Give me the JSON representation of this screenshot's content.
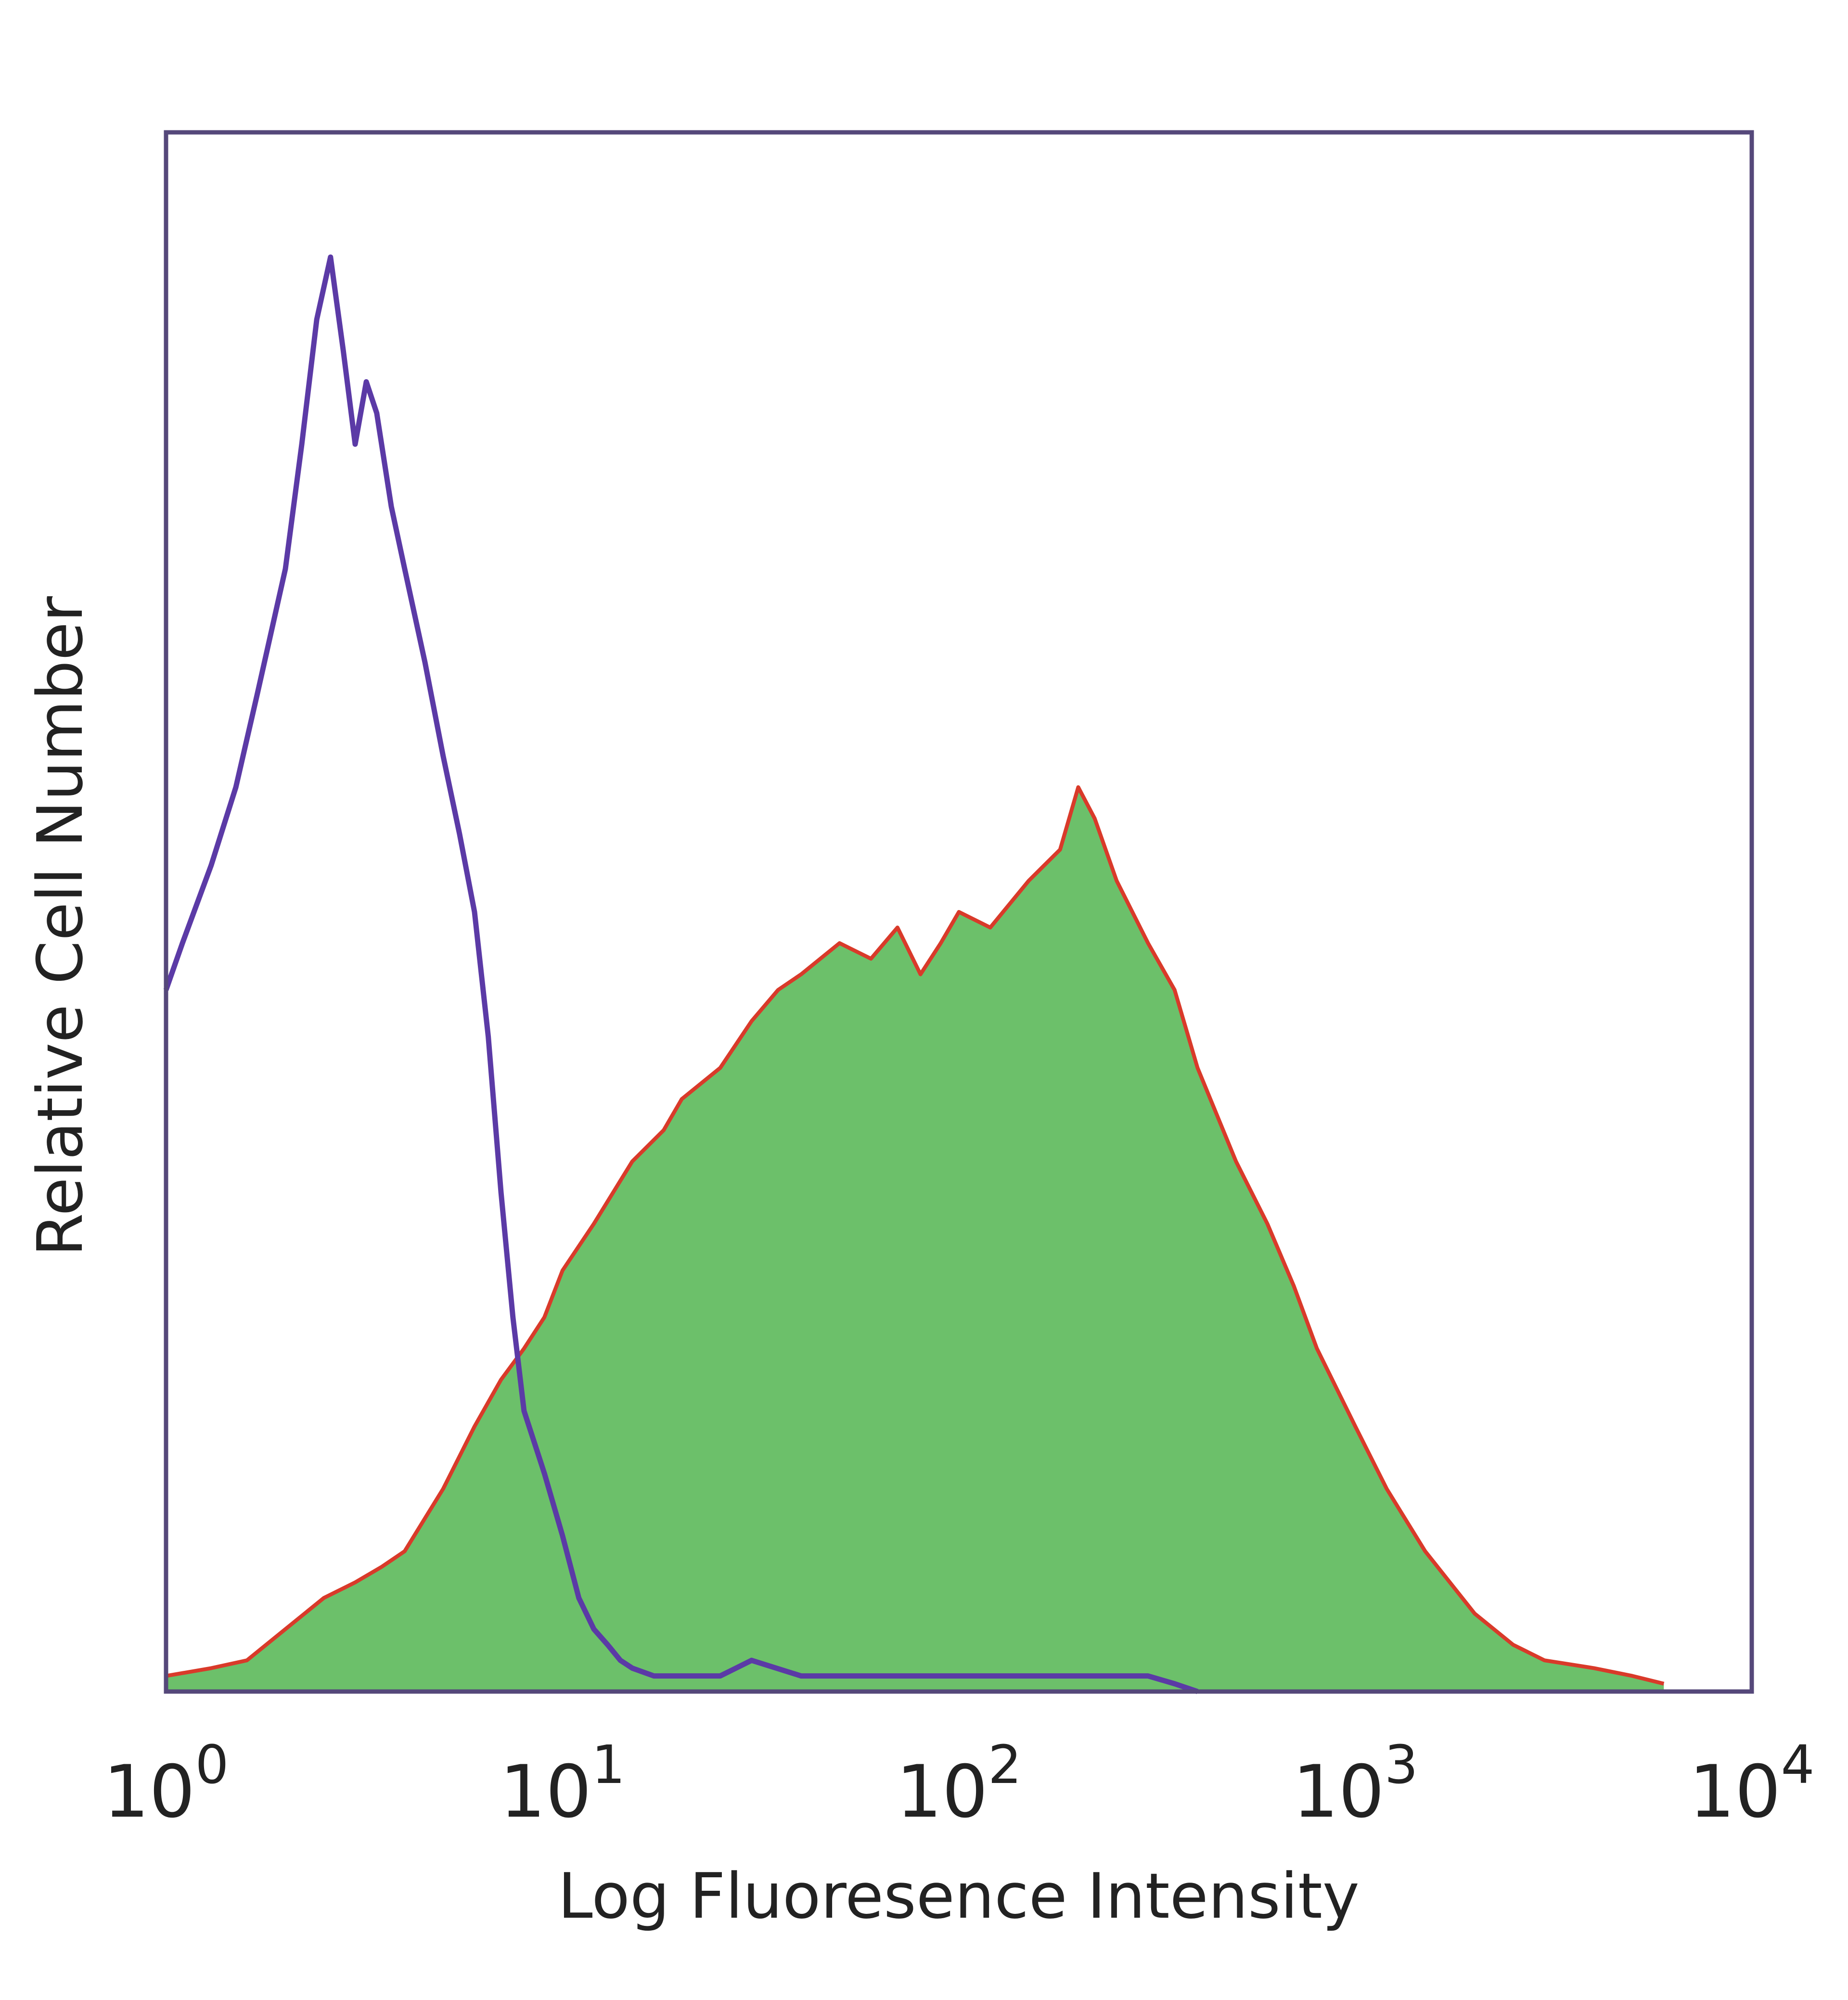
{
  "chart_data": {
    "type": "area",
    "title": "",
    "xlabel": "Log Fluoresence Intensity",
    "ylabel": "Relative Cell Number",
    "xscale": "log",
    "xlim": [
      1,
      10000
    ],
    "ylim": [
      0,
      100
    ],
    "grid": false,
    "legend": "none",
    "x_ticks": [
      {
        "base": "10",
        "exp": "0"
      },
      {
        "base": "10",
        "exp": "1"
      },
      {
        "base": "10",
        "exp": "2"
      },
      {
        "base": "10",
        "exp": "3"
      },
      {
        "base": "10",
        "exp": "4"
      }
    ],
    "series": [
      {
        "style": "filled",
        "fill_color": "#6cc06a",
        "line_color": "#d93a2a",
        "x": [
          1,
          1.3,
          1.6,
          2,
          2.5,
          3,
          3.5,
          4,
          5,
          6,
          7,
          8,
          9,
          10,
          12,
          15,
          18,
          20,
          25,
          30,
          35,
          40,
          50,
          60,
          70,
          80,
          90,
          100,
          120,
          150,
          180,
          200,
          220,
          250,
          300,
          350,
          400,
          500,
          600,
          700,
          800,
          1000,
          1200,
          1500,
          2000,
          2500,
          3000,
          4000,
          5000,
          6000
        ],
        "y": [
          1,
          1.5,
          2,
          4,
          6,
          7,
          8,
          9,
          13,
          17,
          20,
          22,
          24,
          27,
          30,
          34,
          36,
          38,
          40,
          43,
          45,
          46,
          48,
          47,
          49,
          46,
          48,
          50,
          49,
          52,
          54,
          58,
          56,
          52,
          48,
          45,
          40,
          34,
          30,
          26,
          22,
          17,
          13,
          9,
          5,
          3,
          2,
          1.5,
          1,
          0.5
        ]
      },
      {
        "style": "line",
        "line_color": "#5b3aa6",
        "x": [
          1,
          1.1,
          1.3,
          1.5,
          1.7,
          2,
          2.2,
          2.4,
          2.6,
          2.8,
          3,
          3.2,
          3.4,
          3.7,
          4,
          4.5,
          5,
          5.5,
          6,
          6.5,
          7,
          7.5,
          8,
          9,
          10,
          11,
          12,
          13,
          14,
          15,
          17,
          20,
          25,
          30,
          40,
          50,
          70,
          100,
          150,
          200,
          250,
          300,
          350,
          400
        ],
        "y": [
          45,
          48,
          53,
          58,
          64,
          72,
          80,
          88,
          92,
          86,
          80,
          84,
          82,
          76,
          72,
          66,
          60,
          55,
          50,
          42,
          32,
          24,
          18,
          14,
          10,
          6,
          4,
          3,
          2,
          1.5,
          1,
          1,
          1,
          2,
          1,
          1,
          1,
          1,
          1,
          1,
          1,
          1,
          0.5,
          0
        ]
      }
    ]
  }
}
